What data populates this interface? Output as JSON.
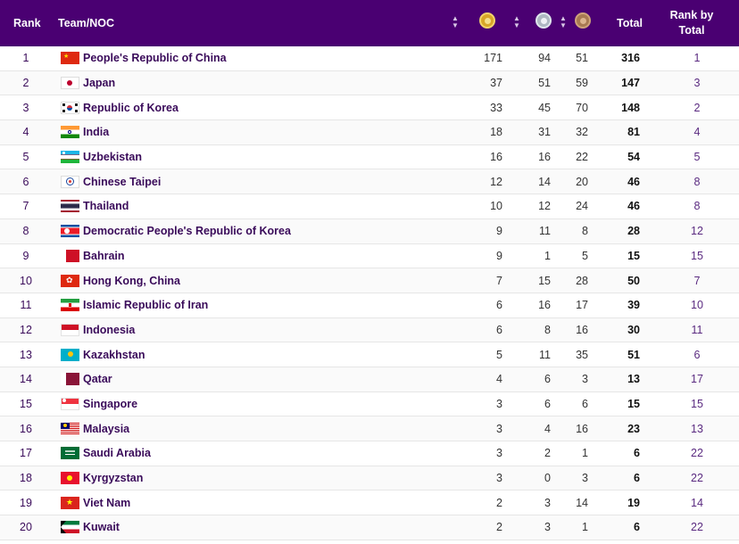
{
  "header": {
    "rank": "Rank",
    "team": "Team/NOC",
    "total": "Total",
    "rank_by_total": "Rank by Total",
    "icons": [
      "sort-icon",
      "gold-medal-icon",
      "sort-icon",
      "silver-medal-icon",
      "sort-icon",
      "bronze-medal-icon"
    ]
  },
  "colors": {
    "header_bg": "#4a0072",
    "header_text": "#ffffff",
    "team_text": "#3a0b5a",
    "row_border": "#e6e6e6"
  },
  "rows": [
    {
      "rank": "1",
      "flag": "flag-china-icon",
      "team": "People's Republic of China",
      "gold": "171",
      "silver": "94",
      "bronze": "51",
      "total": "316",
      "rank_by_total": "1"
    },
    {
      "rank": "2",
      "flag": "flag-japan-icon",
      "team": "Japan",
      "gold": "37",
      "silver": "51",
      "bronze": "59",
      "total": "147",
      "rank_by_total": "3"
    },
    {
      "rank": "3",
      "flag": "flag-korea-icon",
      "team": "Republic of Korea",
      "gold": "33",
      "silver": "45",
      "bronze": "70",
      "total": "148",
      "rank_by_total": "2"
    },
    {
      "rank": "4",
      "flag": "flag-india-icon",
      "team": "India",
      "gold": "18",
      "silver": "31",
      "bronze": "32",
      "total": "81",
      "rank_by_total": "4"
    },
    {
      "rank": "5",
      "flag": "flag-uzbekistan-icon",
      "team": "Uzbekistan",
      "gold": "16",
      "silver": "16",
      "bronze": "22",
      "total": "54",
      "rank_by_total": "5"
    },
    {
      "rank": "6",
      "flag": "flag-chinese-taipei-icon",
      "team": "Chinese Taipei",
      "gold": "12",
      "silver": "14",
      "bronze": "20",
      "total": "46",
      "rank_by_total": "8"
    },
    {
      "rank": "7",
      "flag": "flag-thailand-icon",
      "team": "Thailand",
      "gold": "10",
      "silver": "12",
      "bronze": "24",
      "total": "46",
      "rank_by_total": "8"
    },
    {
      "rank": "8",
      "flag": "flag-dpr-korea-icon",
      "team": "Democratic People's Republic of Korea",
      "gold": "9",
      "silver": "11",
      "bronze": "8",
      "total": "28",
      "rank_by_total": "12"
    },
    {
      "rank": "9",
      "flag": "flag-bahrain-icon",
      "team": "Bahrain",
      "gold": "9",
      "silver": "1",
      "bronze": "5",
      "total": "15",
      "rank_by_total": "15"
    },
    {
      "rank": "10",
      "flag": "flag-hong-kong-icon",
      "team": "Hong Kong, China",
      "gold": "7",
      "silver": "15",
      "bronze": "28",
      "total": "50",
      "rank_by_total": "7"
    },
    {
      "rank": "11",
      "flag": "flag-iran-icon",
      "team": "Islamic Republic of Iran",
      "gold": "6",
      "silver": "16",
      "bronze": "17",
      "total": "39",
      "rank_by_total": "10"
    },
    {
      "rank": "12",
      "flag": "flag-indonesia-icon",
      "team": "Indonesia",
      "gold": "6",
      "silver": "8",
      "bronze": "16",
      "total": "30",
      "rank_by_total": "11"
    },
    {
      "rank": "13",
      "flag": "flag-kazakhstan-icon",
      "team": "Kazakhstan",
      "gold": "5",
      "silver": "11",
      "bronze": "35",
      "total": "51",
      "rank_by_total": "6"
    },
    {
      "rank": "14",
      "flag": "flag-qatar-icon",
      "team": "Qatar",
      "gold": "4",
      "silver": "6",
      "bronze": "3",
      "total": "13",
      "rank_by_total": "17"
    },
    {
      "rank": "15",
      "flag": "flag-singapore-icon",
      "team": "Singapore",
      "gold": "3",
      "silver": "6",
      "bronze": "6",
      "total": "15",
      "rank_by_total": "15"
    },
    {
      "rank": "16",
      "flag": "flag-malaysia-icon",
      "team": "Malaysia",
      "gold": "3",
      "silver": "4",
      "bronze": "16",
      "total": "23",
      "rank_by_total": "13"
    },
    {
      "rank": "17",
      "flag": "flag-saudi-arabia-icon",
      "team": "Saudi Arabia",
      "gold": "3",
      "silver": "2",
      "bronze": "1",
      "total": "6",
      "rank_by_total": "22"
    },
    {
      "rank": "18",
      "flag": "flag-kyrgyzstan-icon",
      "team": "Kyrgyzstan",
      "gold": "3",
      "silver": "0",
      "bronze": "3",
      "total": "6",
      "rank_by_total": "22"
    },
    {
      "rank": "19",
      "flag": "flag-viet-nam-icon",
      "team": "Viet Nam",
      "gold": "2",
      "silver": "3",
      "bronze": "14",
      "total": "19",
      "rank_by_total": "14"
    },
    {
      "rank": "20",
      "flag": "flag-kuwait-icon",
      "team": "Kuwait",
      "gold": "2",
      "silver": "3",
      "bronze": "1",
      "total": "6",
      "rank_by_total": "22"
    }
  ]
}
